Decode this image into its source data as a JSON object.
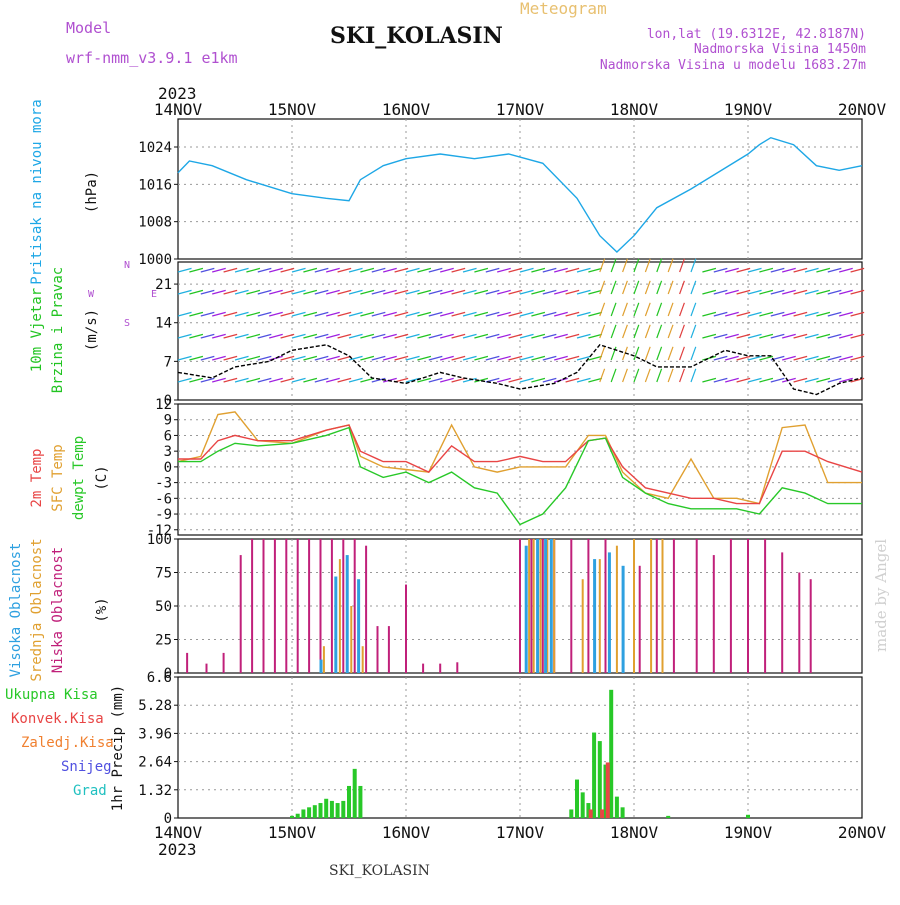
{
  "header": {
    "model_label": "Model",
    "model_name": "wrf-nmm_v3.9.1 e1km",
    "station": "SKI_KOLASIN",
    "product": "Meteogram",
    "lonlat": "lon,lat (19.6312E, 42.8187N)",
    "elevation": "Nadmorska Visina 1450m",
    "model_elevation": "Nadmorska Visina u modelu 1683.27m",
    "year": "2023",
    "credit": "made by Angel",
    "footer_station": "SKI_KOLASIN"
  },
  "colors": {
    "pressure": "#1ea7e6",
    "wind_label": "#22c422",
    "temp2m": "#e84545",
    "sfc": "#e0a030",
    "dewpt": "#28c828",
    "high_cloud": "#2ea0e0",
    "mid_cloud": "#e0a030",
    "low_cloud": "#c0207a",
    "total_precip": "#28c828",
    "conv_precip": "#e84545",
    "frozen": "#f08030",
    "snow": "#5050e0",
    "graupel": "#20c0c0",
    "model_label": "#b050d0"
  },
  "chart_data": [
    {
      "type": "line",
      "name": "pressure",
      "ylabel": [
        "Pritisak na nivou mora",
        "(hPa)"
      ],
      "ylim": [
        1000,
        1030
      ],
      "yticks": [
        1000,
        1008,
        1016,
        1024
      ],
      "x_days": [
        "14NOV",
        "15NOV",
        "16NOV",
        "17NOV",
        "18NOV",
        "19NOV",
        "20NOV"
      ],
      "series": [
        {
          "name": "",
          "x": [
            0,
            0.1,
            0.3,
            0.6,
            1.0,
            1.3,
            1.5,
            1.6,
            1.8,
            2.0,
            2.3,
            2.6,
            2.9,
            3.2,
            3.5,
            3.7,
            3.85,
            4.0,
            4.2,
            4.5,
            4.8,
            5.0,
            5.1,
            5.2,
            5.4,
            5.6,
            5.8,
            6.0
          ],
          "y": [
            1018.5,
            1021,
            1020,
            1017,
            1014,
            1013,
            1012.5,
            1017,
            1020,
            1021.5,
            1022.5,
            1021.5,
            1022.5,
            1020.5,
            1013,
            1005,
            1001.5,
            1005,
            1011,
            1015,
            1019.5,
            1022.5,
            1024.5,
            1026,
            1024.5,
            1020,
            1019,
            1020
          ]
        }
      ]
    },
    {
      "type": "line",
      "name": "wind",
      "ylabel": [
        "10m Vjetar",
        "Brzina i Pravac",
        "(m/s)"
      ],
      "ylim": [
        0,
        25
      ],
      "yticks": [
        0,
        7,
        14,
        21
      ],
      "compass": [
        "N",
        "E",
        "S",
        "W"
      ],
      "series": [
        {
          "name": "",
          "x": [
            0,
            0.3,
            0.5,
            0.8,
            1.0,
            1.3,
            1.5,
            1.7,
            2.0,
            2.3,
            2.5,
            2.8,
            3.0,
            3.3,
            3.5,
            3.7,
            4.0,
            4.2,
            4.5,
            4.8,
            5.0,
            5.2,
            5.4,
            5.6,
            5.8,
            6.0
          ],
          "y": [
            5,
            4,
            6,
            7,
            9,
            10,
            8,
            4,
            3,
            5,
            4,
            3,
            2,
            3,
            5,
            10,
            8,
            6,
            6,
            9,
            8,
            8,
            2,
            1,
            3,
            4
          ]
        }
      ]
    },
    {
      "type": "line",
      "name": "temperature",
      "ylabel": [
        "2m Temp",
        "SFC Temp",
        "dewpt Temp",
        "(C)"
      ],
      "ylim": [
        -13,
        12
      ],
      "yticks": [
        -12,
        -9,
        -6,
        -3,
        0,
        3,
        6,
        9,
        12
      ],
      "series": [
        {
          "name": "2m Temp",
          "x": [
            0,
            0.2,
            0.35,
            0.5,
            0.7,
            1.0,
            1.3,
            1.5,
            1.6,
            1.8,
            2.0,
            2.2,
            2.4,
            2.6,
            2.8,
            3.0,
            3.2,
            3.4,
            3.6,
            3.75,
            3.9,
            4.1,
            4.3,
            4.5,
            4.7,
            4.9,
            5.1,
            5.3,
            5.5,
            5.7,
            6.0
          ],
          "y": [
            1.5,
            1.5,
            5,
            6,
            5,
            5,
            7,
            8,
            3,
            1,
            1,
            -1,
            4,
            1,
            1,
            2,
            1,
            1,
            5,
            5.5,
            0,
            -4,
            -5,
            -6,
            -6,
            -7,
            -7,
            3,
            3,
            1,
            -1
          ]
        },
        {
          "name": "SFC Temp",
          "x": [
            0,
            0.2,
            0.35,
            0.5,
            0.7,
            1.0,
            1.3,
            1.5,
            1.6,
            1.8,
            2.0,
            2.2,
            2.4,
            2.6,
            2.8,
            3.0,
            3.2,
            3.4,
            3.6,
            3.75,
            3.9,
            4.1,
            4.3,
            4.5,
            4.7,
            4.9,
            5.1,
            5.3,
            5.5,
            5.7,
            6.0
          ],
          "y": [
            1,
            2,
            10,
            10.5,
            5,
            4.5,
            7,
            8,
            2,
            0,
            -0.5,
            -1,
            8,
            0,
            -1,
            0,
            0,
            0,
            6,
            6,
            -1,
            -5,
            -6,
            1.5,
            -6,
            -6,
            -7,
            7.5,
            8,
            -3,
            -3
          ]
        },
        {
          "name": "dewpt Temp",
          "x": [
            0,
            0.2,
            0.35,
            0.5,
            0.7,
            1.0,
            1.3,
            1.5,
            1.6,
            1.8,
            2.0,
            2.2,
            2.4,
            2.6,
            2.8,
            3.0,
            3.2,
            3.4,
            3.6,
            3.75,
            3.9,
            4.1,
            4.3,
            4.5,
            4.7,
            4.9,
            5.1,
            5.3,
            5.5,
            5.7,
            6.0
          ],
          "y": [
            1,
            1,
            3,
            4.5,
            4,
            4.5,
            6,
            7.5,
            0,
            -2,
            -1,
            -3,
            -1,
            -4,
            -5,
            -11,
            -9,
            -4,
            5,
            5.5,
            -2,
            -5,
            -7,
            -8,
            -8,
            -8,
            -9,
            -4,
            -5,
            -7,
            -7
          ]
        }
      ]
    },
    {
      "type": "bar",
      "name": "clouds",
      "ylabel": [
        "Visoka Oblacnost",
        "Srednja Oblacnost",
        "Niska Oblacnost",
        "(%)"
      ],
      "ylim": [
        0,
        100
      ],
      "yticks": [
        0,
        25,
        50,
        75,
        100
      ],
      "series": [
        {
          "name": "Niska Oblacnost",
          "x": [
            0.08,
            0.25,
            0.4,
            0.55,
            0.65,
            0.75,
            0.85,
            0.95,
            1.05,
            1.15,
            1.25,
            1.35,
            1.45,
            1.55,
            1.65,
            1.75,
            1.85,
            2.0,
            2.15,
            2.3,
            2.45,
            3.0,
            3.1,
            3.2,
            3.3,
            3.45,
            3.6,
            3.75,
            4.05,
            4.2,
            4.35,
            4.55,
            4.7,
            4.85,
            5.0,
            5.15,
            5.3,
            5.45,
            5.55
          ],
          "y": [
            15,
            7,
            15,
            88,
            100,
            100,
            100,
            100,
            100,
            100,
            100,
            100,
            100,
            100,
            95,
            35,
            35,
            66,
            7,
            7,
            8,
            100,
            100,
            100,
            100,
            100,
            100,
            100,
            80,
            100,
            100,
            100,
            88,
            100,
            100,
            100,
            90,
            75,
            70
          ]
        },
        {
          "name": "Srednja Oblacnost",
          "x": [
            1.28,
            1.42,
            1.52,
            1.62,
            3.08,
            3.12,
            3.18,
            3.24,
            3.3,
            3.55,
            3.7,
            3.85,
            4.0,
            4.15,
            4.25
          ],
          "y": [
            20,
            85,
            50,
            20,
            100,
            100,
            100,
            100,
            100,
            70,
            85,
            95,
            100,
            100,
            100
          ]
        },
        {
          "name": "Visoka Oblacnost",
          "x": [
            1.25,
            1.38,
            1.48,
            1.58,
            3.05,
            3.15,
            3.22,
            3.27,
            3.65,
            3.78,
            3.9
          ],
          "y": [
            10,
            72,
            88,
            70,
            95,
            100,
            100,
            100,
            85,
            90,
            80
          ]
        }
      ]
    },
    {
      "type": "bar",
      "name": "precip",
      "ylabel": [
        "1hr Precip (mm)"
      ],
      "ylim": [
        0,
        6.6
      ],
      "yticks": [
        0,
        1.32,
        2.64,
        3.96,
        5.28,
        6.6
      ],
      "legend": [
        "Ukupna Kisa",
        "Konvek.Kisa",
        "Zaledj.Kisa",
        "Snijeg",
        "Grad"
      ],
      "series": [
        {
          "name": "Ukupna Kisa",
          "x": [
            1.0,
            1.05,
            1.1,
            1.15,
            1.2,
            1.25,
            1.3,
            1.35,
            1.4,
            1.45,
            1.5,
            1.55,
            1.6,
            3.45,
            3.5,
            3.55,
            3.6,
            3.65,
            3.7,
            3.75,
            3.8,
            3.85,
            3.9,
            4.3,
            5.0
          ],
          "y": [
            0.1,
            0.2,
            0.4,
            0.5,
            0.6,
            0.7,
            0.9,
            0.8,
            0.7,
            0.8,
            1.5,
            2.3,
            1.5,
            0.4,
            1.8,
            1.2,
            0.7,
            4.0,
            3.6,
            2.5,
            6.0,
            1.0,
            0.5,
            0.1,
            0.15
          ]
        },
        {
          "name": "Konvek.Kisa",
          "x": [
            3.62,
            3.72,
            3.77
          ],
          "y": [
            0.4,
            0.4,
            2.6
          ]
        }
      ]
    }
  ]
}
